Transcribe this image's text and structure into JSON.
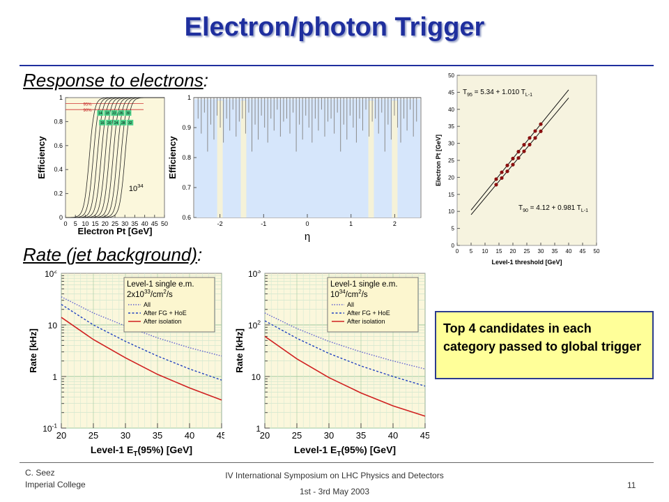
{
  "slide": {
    "title": "Electron/photon Trigger",
    "response_heading": "Response to electrons",
    "rate_heading": "Rate (jet background)",
    "callout": "Top 4 candidates in each category passed to global trigger"
  },
  "footer": {
    "author": "C. Seez",
    "institution": "Imperial College",
    "conference": "IV International  Symposium on LHC Physics and Detectors",
    "date": "1st - 3rd May 2003",
    "page": "11"
  },
  "colors": {
    "title": "#1f2f9e",
    "callout_bg": "#ffff99",
    "plot_bg": "#fbf7dc",
    "eta_bg": "#d6e6fb"
  },
  "chart_data": [
    {
      "type": "line",
      "id": "efficiency-vs-pt",
      "xlabel": "Electron Pt [GeV]",
      "ylabel": "Efficiency",
      "xticks": [
        "0",
        "5",
        "10",
        "15",
        "20",
        "25",
        "30",
        "35",
        "40",
        "45",
        "50"
      ],
      "yticks": [
        "0",
        "0.2",
        "0.4",
        "0.6",
        "0.8",
        "1"
      ],
      "xlim": [
        0,
        50
      ],
      "ylim": [
        0,
        1
      ],
      "level_labels": [
        "95%",
        "90%"
      ],
      "threshold_labels_top": [
        "14",
        "18",
        "22",
        "26",
        "30"
      ],
      "threshold_labels_bottom": [
        "16",
        "20",
        "24",
        "28",
        "32"
      ],
      "thresholds": [
        14,
        16,
        18,
        20,
        22,
        24,
        26,
        28,
        30,
        32
      ],
      "annotation_base": "10",
      "annotation_exp": "34"
    },
    {
      "type": "bar",
      "id": "efficiency-vs-eta",
      "xlabel": "η",
      "ylabel": "Efficiency",
      "xticks": [
        "-2",
        "-1",
        "0",
        "1",
        "2"
      ],
      "yticks": [
        "0.6",
        "0.7",
        "0.8",
        "0.9",
        "1"
      ],
      "xlim": [
        -2.6,
        2.6
      ],
      "ylim": [
        0.6,
        1.0
      ],
      "plateau": 1.0,
      "gap_depths": [
        0.93,
        0.88,
        0.95,
        0.82,
        0.91,
        0.86,
        0.94,
        0.9,
        0.85,
        0.93,
        0.89,
        0.96,
        0.87,
        0.92
      ]
    },
    {
      "type": "scatter",
      "id": "pt-vs-threshold",
      "xlabel": "Level-1 threshold [GeV]",
      "ylabel": "Electron Pt [GeV]",
      "xticks": [
        "0",
        "5",
        "10",
        "15",
        "20",
        "25",
        "30",
        "35",
        "40",
        "45",
        "50"
      ],
      "yticks": [
        "0",
        "5",
        "10",
        "15",
        "20",
        "25",
        "30",
        "35",
        "40",
        "45",
        "50"
      ],
      "xlim": [
        0,
        50
      ],
      "ylim": [
        0,
        50
      ],
      "fit95": {
        "label_prefix": "T",
        "label_sub": "95",
        "formula": " = 5.34 + 1.010 T",
        "tsub": "L-1",
        "a": 5.34,
        "b": 1.01
      },
      "fit90": {
        "label_prefix": "T",
        "label_sub": "90",
        "formula": " = 4.12 + 0.981 T",
        "tsub": "L-1",
        "a": 4.12,
        "b": 0.981
      },
      "points_x": [
        14,
        16,
        18,
        20,
        22,
        24,
        26,
        28,
        30
      ]
    },
    {
      "type": "line",
      "id": "rate-low-lumi",
      "xlabel_prefix": "Level-1 E",
      "xlabel_sub": "T",
      "xlabel_suffix": "(95%) [GeV]",
      "ylabel": "Rate [kHz]",
      "xticks": [
        "20",
        "25",
        "30",
        "35",
        "40",
        "45"
      ],
      "xlim": [
        20,
        45
      ],
      "ylog": true,
      "yticks": [
        {
          "b": "10",
          "e": "2",
          "v": 2
        },
        {
          "b": "10",
          "e": "",
          "v": 1
        },
        {
          "b": "1",
          "e": "",
          "v": 0
        },
        {
          "b": "10",
          "e": "-1",
          "v": -1
        }
      ],
      "ylim_log10": [
        -1,
        2
      ],
      "legend_title": "Level-1 single e.m.",
      "legend_lumi": "2x10",
      "legend_lumi_exp": "33",
      "legend_lumi_unit": "/cm",
      "legend_lumi_unit_exp": "2",
      "legend_lumi_tail": "/s",
      "series": [
        {
          "name": "All",
          "color": "#6060d0",
          "style": "dotted",
          "x": [
            20,
            25,
            30,
            35,
            40,
            45
          ],
          "y": [
            35,
            17,
            9.5,
            5.6,
            3.6,
            2.5
          ]
        },
        {
          "name": "After FG + HoE",
          "color": "#2040c0",
          "style": "dashed",
          "x": [
            20,
            25,
            30,
            35,
            40,
            45
          ],
          "y": [
            25,
            10,
            4.8,
            2.5,
            1.4,
            0.85
          ]
        },
        {
          "name": "After isolation",
          "color": "#d02020",
          "style": "solid",
          "x": [
            20,
            25,
            30,
            35,
            40,
            45
          ],
          "y": [
            14,
            5.2,
            2.3,
            1.1,
            0.6,
            0.35
          ]
        }
      ]
    },
    {
      "type": "line",
      "id": "rate-high-lumi",
      "xlabel_prefix": "Level-1 E",
      "xlabel_sub": "T",
      "xlabel_suffix": "(95%) [GeV]",
      "ylabel": "Rate [kHz]",
      "xticks": [
        "20",
        "25",
        "30",
        "35",
        "40",
        "45"
      ],
      "xlim": [
        20,
        45
      ],
      "ylog": true,
      "yticks": [
        {
          "b": "10",
          "e": "3",
          "v": 3
        },
        {
          "b": "10",
          "e": "2",
          "v": 2
        },
        {
          "b": "10",
          "e": "",
          "v": 1
        },
        {
          "b": "1",
          "e": "",
          "v": 0
        }
      ],
      "ylim_log10": [
        0,
        3
      ],
      "legend_title": "Level-1 single e.m.",
      "legend_lumi": "10",
      "legend_lumi_exp": "34",
      "legend_lumi_unit": "/cm",
      "legend_lumi_unit_exp": "2",
      "legend_lumi_tail": "/s",
      "series": [
        {
          "name": "All",
          "color": "#6060d0",
          "style": "dotted",
          "x": [
            20,
            25,
            30,
            35,
            40,
            45
          ],
          "y": [
            170,
            85,
            48,
            30,
            20,
            14
          ]
        },
        {
          "name": "After FG + HoE",
          "color": "#2040c0",
          "style": "dashed",
          "x": [
            20,
            25,
            30,
            35,
            40,
            45
          ],
          "y": [
            120,
            55,
            28,
            16,
            10,
            6.5
          ]
        },
        {
          "name": "After isolation",
          "color": "#d02020",
          "style": "solid",
          "x": [
            20,
            25,
            30,
            35,
            40,
            45
          ],
          "y": [
            60,
            22,
            9.5,
            4.8,
            2.7,
            1.7
          ]
        }
      ]
    }
  ]
}
